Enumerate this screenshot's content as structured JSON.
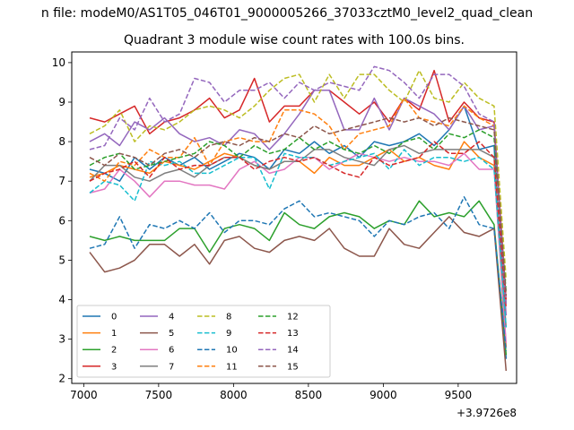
{
  "window": {
    "suptitle": "n file: modeM0/AS1T05_046T01_9000005266_37033cztM0_level2_quad_clean",
    "title": "Quadrant 3 module wise count rates with 100.0s bins."
  },
  "chart_data": {
    "type": "line",
    "title": "Quadrant 3 module wise count rates with 100.0s bins.",
    "xlabel": "",
    "ylabel": "",
    "x_offset_label": "+3.9726e8",
    "xlim": [
      6920,
      9890
    ],
    "ylim": [
      1.88,
      10.27
    ],
    "xticks": [
      7000,
      7500,
      8000,
      8500,
      9000,
      9500
    ],
    "xtick_labels": [
      "7000",
      "7500",
      "8000",
      "8500",
      "9000",
      "9500"
    ],
    "yticks": [
      2,
      3,
      4,
      5,
      6,
      7,
      8,
      9,
      10
    ],
    "ytick_labels": [
      "2",
      "3",
      "4",
      "5",
      "6",
      "7",
      "8",
      "9",
      "10"
    ],
    "grid": false,
    "legend_position": "lower-left",
    "legend_columns": 4,
    "x": [
      7040,
      7140,
      7240,
      7340,
      7440,
      7540,
      7640,
      7740,
      7840,
      7940,
      8040,
      8140,
      8240,
      8340,
      8440,
      8540,
      8640,
      8740,
      8840,
      8940,
      9040,
      9140,
      9240,
      9340,
      9440,
      9540,
      9640,
      9740,
      9820
    ],
    "series": [
      {
        "name": "0",
        "color": "#1f77b4",
        "dash": "solid",
        "values": [
          7.3,
          7.2,
          7.0,
          7.6,
          7.3,
          7.6,
          7.4,
          7.6,
          7.3,
          7.5,
          7.7,
          7.6,
          7.3,
          7.8,
          7.7,
          8.0,
          7.7,
          7.9,
          7.6,
          8.0,
          7.9,
          8.0,
          8.2,
          7.9,
          8.3,
          8.9,
          7.8,
          7.9,
          2.5
        ]
      },
      {
        "name": "1",
        "color": "#ff7f0e",
        "dash": "solid",
        "values": [
          7.1,
          7.2,
          7.4,
          7.3,
          7.2,
          7.5,
          7.4,
          7.3,
          7.5,
          7.7,
          7.6,
          7.4,
          7.3,
          7.5,
          7.5,
          7.2,
          7.6,
          7.4,
          7.4,
          7.6,
          7.8,
          7.5,
          7.6,
          7.4,
          7.3,
          8.0,
          7.6,
          7.4,
          2.8
        ]
      },
      {
        "name": "2",
        "color": "#2ca02c",
        "dash": "solid",
        "values": [
          5.6,
          5.5,
          5.6,
          5.5,
          5.5,
          5.5,
          5.8,
          5.8,
          5.2,
          5.8,
          5.9,
          5.8,
          5.5,
          6.2,
          5.9,
          5.8,
          6.1,
          6.2,
          6.1,
          5.8,
          6.0,
          5.9,
          6.5,
          6.1,
          6.2,
          6.1,
          6.5,
          5.9,
          2.6
        ]
      },
      {
        "name": "3",
        "color": "#d62728",
        "dash": "solid",
        "values": [
          8.6,
          8.5,
          8.7,
          8.9,
          8.2,
          8.5,
          8.6,
          8.8,
          9.1,
          8.6,
          8.8,
          9.6,
          8.5,
          8.9,
          8.9,
          9.3,
          9.3,
          9.0,
          8.7,
          9.0,
          8.5,
          9.1,
          8.8,
          9.8,
          8.5,
          9.0,
          8.6,
          8.5,
          4.0
        ]
      },
      {
        "name": "4",
        "color": "#9467bd",
        "dash": "solid",
        "values": [
          8.0,
          8.2,
          7.9,
          8.5,
          8.3,
          8.6,
          8.2,
          8.0,
          8.1,
          7.9,
          8.3,
          8.2,
          7.8,
          8.2,
          8.7,
          9.3,
          9.3,
          8.3,
          8.3,
          9.1,
          8.3,
          9.1,
          8.9,
          8.7,
          8.3,
          8.9,
          8.3,
          8.4,
          3.6
        ]
      },
      {
        "name": "5",
        "color": "#8c564b",
        "dash": "solid",
        "values": [
          5.2,
          4.7,
          4.8,
          5.0,
          5.4,
          5.4,
          5.1,
          5.4,
          4.9,
          5.5,
          5.6,
          5.3,
          5.2,
          5.5,
          5.6,
          5.5,
          5.8,
          5.3,
          5.1,
          5.1,
          5.8,
          5.4,
          5.3,
          5.7,
          6.1,
          5.7,
          5.6,
          5.8,
          2.2
        ]
      },
      {
        "name": "6",
        "color": "#e377c2",
        "dash": "solid",
        "values": [
          6.7,
          6.8,
          7.3,
          7.0,
          6.6,
          7.0,
          7.0,
          6.9,
          6.9,
          6.8,
          7.3,
          7.5,
          7.2,
          7.3,
          7.6,
          7.6,
          7.3,
          7.5,
          7.7,
          7.6,
          7.5,
          7.6,
          7.5,
          7.5,
          7.4,
          7.7,
          7.3,
          7.3,
          2.9
        ]
      },
      {
        "name": "7",
        "color": "#7f7f7f",
        "dash": "solid",
        "values": [
          7.0,
          7.4,
          7.4,
          7.1,
          7.0,
          7.2,
          7.3,
          7.1,
          7.4,
          7.6,
          7.6,
          7.4,
          7.3,
          7.5,
          7.5,
          7.8,
          7.8,
          7.6,
          7.5,
          7.4,
          7.8,
          7.9,
          7.7,
          7.8,
          7.8,
          7.8,
          7.8,
          7.6,
          3.3
        ]
      },
      {
        "name": "8",
        "color": "#bcbd22",
        "dash": "dashed",
        "values": [
          8.2,
          8.4,
          8.8,
          8.0,
          8.4,
          8.3,
          8.5,
          8.8,
          8.9,
          8.8,
          8.6,
          8.9,
          9.3,
          9.6,
          9.7,
          9.0,
          9.7,
          9.1,
          9.7,
          9.7,
          9.3,
          9.0,
          9.8,
          9.1,
          9.0,
          9.5,
          9.1,
          8.9,
          4.5
        ]
      },
      {
        "name": "9",
        "color": "#17becf",
        "dash": "dashed",
        "values": [
          6.7,
          7.0,
          6.9,
          6.5,
          7.5,
          7.4,
          7.5,
          7.2,
          7.2,
          7.4,
          7.6,
          7.6,
          6.8,
          7.7,
          7.6,
          7.6,
          7.4,
          7.5,
          7.6,
          7.7,
          7.3,
          7.8,
          7.4,
          7.6,
          7.6,
          7.5,
          7.6,
          7.3,
          3.3
        ]
      },
      {
        "name": "10",
        "color": "#1f77b4",
        "dash": "dashed",
        "values": [
          5.3,
          5.4,
          6.1,
          5.3,
          5.9,
          5.8,
          6.0,
          5.8,
          6.2,
          5.7,
          6.0,
          6.0,
          5.9,
          6.3,
          6.5,
          6.1,
          6.2,
          6.1,
          6.0,
          5.6,
          6.0,
          5.9,
          6.1,
          6.2,
          5.8,
          6.6,
          5.9,
          5.8,
          2.7
        ]
      },
      {
        "name": "11",
        "color": "#ff7f0e",
        "dash": "dashed",
        "values": [
          7.2,
          7.0,
          7.5,
          7.4,
          7.8,
          7.6,
          7.6,
          8.1,
          7.4,
          8.0,
          8.1,
          8.0,
          8.0,
          8.8,
          8.8,
          8.7,
          8.4,
          7.8,
          8.2,
          8.3,
          8.4,
          9.1,
          8.6,
          8.5,
          8.4,
          8.9,
          8.6,
          8.4,
          3.9
        ]
      },
      {
        "name": "12",
        "color": "#2ca02c",
        "dash": "dashed",
        "values": [
          7.4,
          7.6,
          7.7,
          7.3,
          7.4,
          7.5,
          7.6,
          7.7,
          8.0,
          7.9,
          7.6,
          7.9,
          7.7,
          7.8,
          8.1,
          7.8,
          8.0,
          7.8,
          7.7,
          7.9,
          7.7,
          8.0,
          8.1,
          7.8,
          8.2,
          8.1,
          8.3,
          8.1,
          4.2
        ]
      },
      {
        "name": "13",
        "color": "#d62728",
        "dash": "dashed",
        "values": [
          7.0,
          7.2,
          7.3,
          7.5,
          7.1,
          7.6,
          7.3,
          7.4,
          7.4,
          7.6,
          7.6,
          7.3,
          7.5,
          7.6,
          7.5,
          7.6,
          7.4,
          7.2,
          7.1,
          7.6,
          7.4,
          7.5,
          7.6,
          8.0,
          7.7,
          7.7,
          8.0,
          7.6,
          3.8
        ]
      },
      {
        "name": "14",
        "color": "#9467bd",
        "dash": "dashed",
        "values": [
          7.8,
          7.9,
          8.6,
          8.3,
          9.1,
          8.5,
          8.7,
          9.6,
          9.5,
          9.0,
          9.3,
          9.3,
          9.5,
          9.1,
          9.5,
          9.3,
          9.5,
          9.4,
          9.3,
          9.9,
          9.8,
          9.5,
          9.1,
          9.7,
          9.7,
          9.4,
          8.7,
          8.5,
          3.9
        ]
      },
      {
        "name": "15",
        "color": "#8c564b",
        "dash": "dashed",
        "values": [
          7.6,
          7.4,
          7.7,
          7.6,
          7.4,
          7.7,
          7.8,
          7.6,
          7.9,
          8.0,
          7.9,
          8.1,
          8.0,
          8.2,
          8.1,
          8.4,
          8.2,
          8.3,
          8.4,
          8.5,
          8.6,
          8.5,
          8.6,
          8.4,
          8.6,
          8.5,
          8.4,
          8.3,
          4.1
        ]
      }
    ]
  }
}
